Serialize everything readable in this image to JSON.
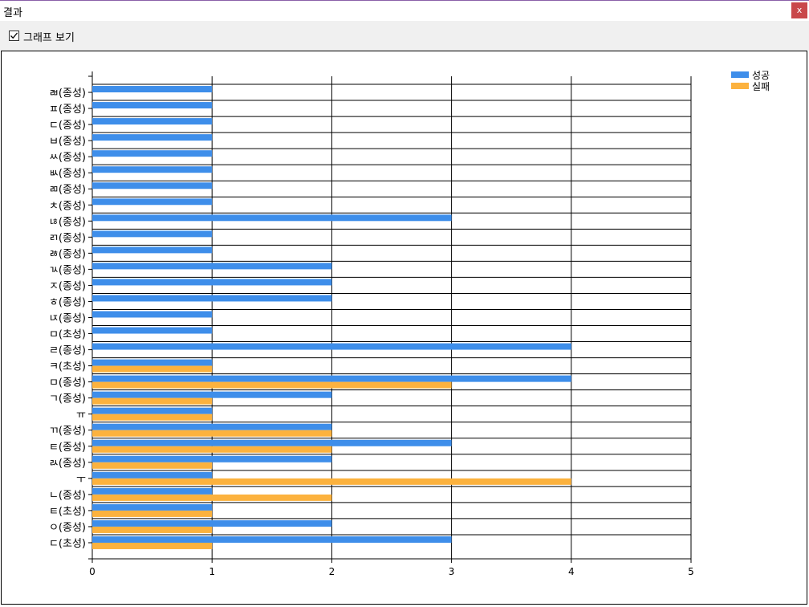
{
  "window": {
    "title": "결과",
    "close_label": "x"
  },
  "toolbar": {
    "show_graph_label": "그래프 보기",
    "show_graph_checked": true
  },
  "chart_data": {
    "type": "bar",
    "orientation": "horizontal",
    "categories": [
      "ㄷ(초성)",
      "ㅇ(종성)",
      "ㅌ(초성)",
      "ㄴ(종성)",
      "ㅜ",
      "ㄽ(종성)",
      "ㅌ(종성)",
      "ㄲ(종성)",
      "ㅠ",
      "ㄱ(종성)",
      "ㅁ(종성)",
      "ㅋ(초성)",
      "ㄹ(종성)",
      "ㅁ(초성)",
      "ㄵ(종성)",
      "ㅎ(종성)",
      "ㅈ(종성)",
      "ㄳ(종성)",
      "ㅀ(종성)",
      "ㄺ(종성)",
      "ㄶ(종성)",
      "ㅊ(종성)",
      "ㄻ(종성)",
      "ㅄ(종성)",
      "ㅆ(종성)",
      "ㅂ(종성)",
      "ㄷ(종성)",
      "ㅍ(종성)",
      "ㄼ(종성)"
    ],
    "series": [
      {
        "name": "성공",
        "color": "#3e8eea",
        "values": [
          3,
          2,
          1,
          1,
          1,
          2,
          3,
          2,
          1,
          2,
          4,
          1,
          4,
          1,
          1,
          2,
          2,
          2,
          1,
          1,
          3,
          1,
          1,
          1,
          1,
          1,
          1,
          1,
          1
        ]
      },
      {
        "name": "실패",
        "color": "#fcb23e",
        "values": [
          1,
          1,
          1,
          2,
          4,
          1,
          2,
          2,
          1,
          1,
          3,
          1,
          0,
          0,
          0,
          0,
          0,
          0,
          0,
          0,
          0,
          0,
          0,
          0,
          0,
          0,
          0,
          0,
          0
        ]
      }
    ],
    "xticks": [
      "0",
      "1",
      "2",
      "3",
      "4",
      "5"
    ],
    "xlim": [
      0,
      5
    ],
    "grid": true,
    "legend": "top-right"
  }
}
